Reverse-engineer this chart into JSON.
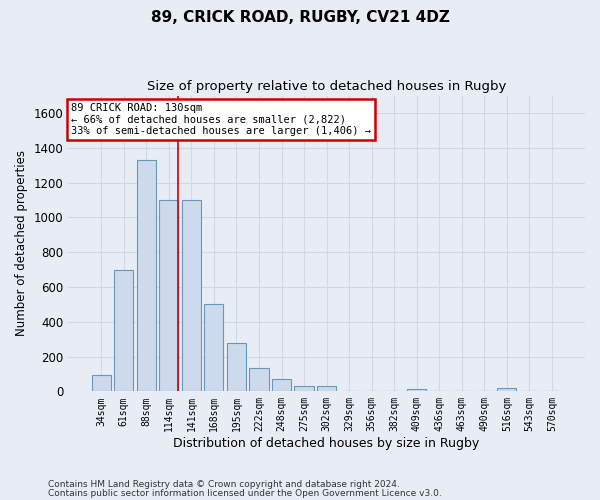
{
  "title_line1": "89, CRICK ROAD, RUGBY, CV21 4DZ",
  "title_line2": "Size of property relative to detached houses in Rugby",
  "xlabel": "Distribution of detached houses by size in Rugby",
  "ylabel": "Number of detached properties",
  "footnote_line1": "Contains HM Land Registry data © Crown copyright and database right 2024.",
  "footnote_line2": "Contains public sector information licensed under the Open Government Licence v3.0.",
  "bar_color": "#ccdaeb",
  "bar_edge_color": "#6699bb",
  "annotation_line1": "89 CRICK ROAD: 130sqm",
  "annotation_line2": "← 66% of detached houses are smaller (2,822)",
  "annotation_line3": "33% of semi-detached houses are larger (1,406) →",
  "annotation_box_facecolor": "#ffffff",
  "annotation_box_edgecolor": "#cc0000",
  "categories": [
    "34sqm",
    "61sqm",
    "88sqm",
    "114sqm",
    "141sqm",
    "168sqm",
    "195sqm",
    "222sqm",
    "248sqm",
    "275sqm",
    "302sqm",
    "329sqm",
    "356sqm",
    "382sqm",
    "409sqm",
    "436sqm",
    "463sqm",
    "490sqm",
    "516sqm",
    "543sqm",
    "570sqm"
  ],
  "values": [
    95,
    700,
    1330,
    1100,
    1100,
    500,
    275,
    135,
    70,
    33,
    33,
    0,
    0,
    0,
    15,
    0,
    0,
    0,
    20,
    0,
    0
  ],
  "ylim": [
    0,
    1700
  ],
  "yticks": [
    0,
    200,
    400,
    600,
    800,
    1000,
    1200,
    1400,
    1600
  ],
  "bg_color": "#e8edf5",
  "grid_color": "#d0d8e4",
  "vline_color": "#cc0000",
  "vline_x": 3.42,
  "figsize": [
    6.0,
    5.0
  ],
  "dpi": 100
}
